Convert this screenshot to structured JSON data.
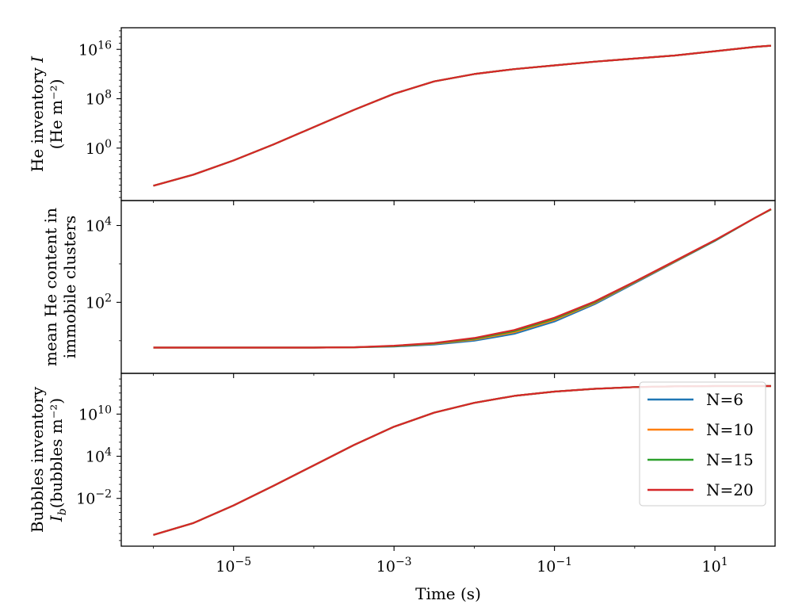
{
  "chart_data": [
    {
      "type": "line",
      "panel": "top",
      "ylabel_lines": [
        "He inventory I",
        "(He m⁻²)"
      ],
      "y_scale": "log",
      "x_scale": "log",
      "xlim_log10": [
        -6.4,
        1.75
      ],
      "ylim_log10": [
        -8.5,
        19.5
      ],
      "yticks": [
        {
          "exp": 16,
          "base": "10",
          "sup": "16"
        },
        {
          "exp": 8,
          "base": "10",
          "sup": "8"
        },
        {
          "exp": 0,
          "base": "10",
          "sup": "0"
        }
      ],
      "series": [
        {
          "name": "N=6",
          "color": "#1f77b4",
          "log10_x": [
            -6.0,
            -5.5,
            -5.0,
            -4.5,
            -4.0,
            -3.5,
            -3.0,
            -2.5,
            -2.0,
            -1.5,
            -1.0,
            -0.5,
            0.0,
            0.5,
            1.0,
            1.5,
            1.7
          ],
          "log10_y": [
            -6.1,
            -4.3,
            -2.0,
            0.6,
            3.4,
            6.2,
            8.8,
            10.8,
            12.0,
            12.8,
            13.4,
            14.0,
            14.5,
            15.0,
            15.7,
            16.4,
            16.6
          ]
        },
        {
          "name": "N=10",
          "color": "#ff7f0e",
          "log10_x": [
            -6.0,
            -5.5,
            -5.0,
            -4.5,
            -4.0,
            -3.5,
            -3.0,
            -2.5,
            -2.0,
            -1.5,
            -1.0,
            -0.5,
            0.0,
            0.5,
            1.0,
            1.5,
            1.7
          ],
          "log10_y": [
            -6.1,
            -4.3,
            -2.0,
            0.6,
            3.4,
            6.2,
            8.8,
            10.8,
            12.0,
            12.8,
            13.4,
            14.0,
            14.5,
            15.0,
            15.7,
            16.4,
            16.6
          ]
        },
        {
          "name": "N=15",
          "color": "#2ca02c",
          "log10_x": [
            -6.0,
            -5.5,
            -5.0,
            -4.5,
            -4.0,
            -3.5,
            -3.0,
            -2.5,
            -2.0,
            -1.5,
            -1.0,
            -0.5,
            0.0,
            0.5,
            1.0,
            1.5,
            1.7
          ],
          "log10_y": [
            -6.1,
            -4.3,
            -2.0,
            0.6,
            3.4,
            6.2,
            8.8,
            10.8,
            12.0,
            12.8,
            13.4,
            14.0,
            14.5,
            15.0,
            15.7,
            16.4,
            16.6
          ]
        },
        {
          "name": "N=20",
          "color": "#d62728",
          "log10_x": [
            -6.0,
            -5.5,
            -5.0,
            -4.5,
            -4.0,
            -3.5,
            -3.0,
            -2.5,
            -2.0,
            -1.5,
            -1.0,
            -0.5,
            0.0,
            0.5,
            1.0,
            1.5,
            1.7
          ],
          "log10_y": [
            -6.1,
            -4.3,
            -2.0,
            0.6,
            3.4,
            6.2,
            8.8,
            10.8,
            12.0,
            12.8,
            13.4,
            14.0,
            14.5,
            15.0,
            15.7,
            16.4,
            16.6
          ]
        }
      ]
    },
    {
      "type": "line",
      "panel": "middle",
      "ylabel_lines": [
        "mean He content in",
        "immobile clusters"
      ],
      "y_scale": "log",
      "x_scale": "log",
      "xlim_log10": [
        -6.4,
        1.75
      ],
      "ylim_log10": [
        0.15,
        4.65
      ],
      "yticks": [
        {
          "exp": 4,
          "base": "10",
          "sup": "4"
        },
        {
          "exp": 2,
          "base": "10",
          "sup": "2"
        }
      ],
      "series": [
        {
          "name": "N=6",
          "color": "#1f77b4",
          "log10_x": [
            -6.0,
            -5.0,
            -4.0,
            -3.5,
            -3.0,
            -2.5,
            -2.0,
            -1.5,
            -1.0,
            -0.5,
            0.0,
            0.5,
            1.0,
            1.5,
            1.7
          ],
          "log10_y": [
            0.82,
            0.82,
            0.82,
            0.83,
            0.85,
            0.9,
            1.0,
            1.18,
            1.5,
            1.95,
            2.5,
            3.05,
            3.6,
            4.2,
            4.42
          ]
        },
        {
          "name": "N=10",
          "color": "#ff7f0e",
          "log10_x": [
            -6.0,
            -5.0,
            -4.0,
            -3.5,
            -3.0,
            -2.5,
            -2.0,
            -1.5,
            -1.0,
            -0.5,
            0.0,
            0.5,
            1.0,
            1.5,
            1.7
          ],
          "log10_y": [
            0.82,
            0.82,
            0.82,
            0.83,
            0.86,
            0.92,
            1.03,
            1.22,
            1.54,
            1.98,
            2.52,
            3.06,
            3.61,
            4.2,
            4.42
          ]
        },
        {
          "name": "N=15",
          "color": "#2ca02c",
          "log10_x": [
            -6.0,
            -5.0,
            -4.0,
            -3.5,
            -3.0,
            -2.5,
            -2.0,
            -1.5,
            -1.0,
            -0.5,
            0.0,
            0.5,
            1.0,
            1.5,
            1.7
          ],
          "log10_y": [
            0.82,
            0.82,
            0.82,
            0.83,
            0.86,
            0.93,
            1.05,
            1.25,
            1.57,
            2.0,
            2.53,
            3.07,
            3.61,
            4.2,
            4.42
          ]
        },
        {
          "name": "N=20",
          "color": "#d62728",
          "log10_x": [
            -6.0,
            -5.0,
            -4.0,
            -3.5,
            -3.0,
            -2.5,
            -2.0,
            -1.5,
            -1.0,
            -0.5,
            0.0,
            0.5,
            1.0,
            1.5,
            1.7
          ],
          "log10_y": [
            0.82,
            0.82,
            0.82,
            0.83,
            0.87,
            0.94,
            1.07,
            1.28,
            1.6,
            2.02,
            2.54,
            3.08,
            3.62,
            4.2,
            4.43
          ]
        }
      ]
    },
    {
      "type": "line",
      "panel": "bottom",
      "ylabel_lines": [
        "Bubbles inventory",
        "I_b(bubbles m⁻²)"
      ],
      "y_scale": "log",
      "x_scale": "log",
      "xlim_log10": [
        -6.4,
        1.75
      ],
      "ylim_log10": [
        -8.8,
        15.8
      ],
      "yticks": [
        {
          "exp": 10,
          "base": "10",
          "sup": "10"
        },
        {
          "exp": 4,
          "base": "10",
          "sup": "4"
        },
        {
          "exp": -2,
          "base": "10",
          "sup": "−2"
        }
      ],
      "xticks": [
        {
          "exp": -5,
          "base": "10",
          "sup": "−5"
        },
        {
          "exp": -3,
          "base": "10",
          "sup": "−3"
        },
        {
          "exp": -1,
          "base": "10",
          "sup": "−1"
        },
        {
          "exp": 1,
          "base": "10",
          "sup": "1"
        }
      ],
      "xlabel": "Time (s)",
      "legend_placement": "upper-right",
      "series": [
        {
          "name": "N=6",
          "color": "#1f77b4",
          "log10_x": [
            -6.0,
            -5.5,
            -5.0,
            -4.5,
            -4.0,
            -3.5,
            -3.0,
            -2.5,
            -2.0,
            -1.5,
            -1.0,
            -0.5,
            0.0,
            0.5,
            1.0,
            1.5,
            1.7
          ],
          "log10_y": [
            -7.2,
            -5.5,
            -3.0,
            -0.2,
            2.7,
            5.6,
            8.2,
            10.2,
            11.6,
            12.6,
            13.2,
            13.6,
            13.85,
            13.95,
            14.0,
            14.0,
            14.0
          ]
        },
        {
          "name": "N=10",
          "color": "#ff7f0e",
          "log10_x": [
            -6.0,
            -5.5,
            -5.0,
            -4.5,
            -4.0,
            -3.5,
            -3.0,
            -2.5,
            -2.0,
            -1.5,
            -1.0,
            -0.5,
            0.0,
            0.5,
            1.0,
            1.5,
            1.7
          ],
          "log10_y": [
            -7.2,
            -5.5,
            -3.0,
            -0.2,
            2.7,
            5.6,
            8.2,
            10.2,
            11.6,
            12.6,
            13.2,
            13.6,
            13.85,
            13.95,
            14.0,
            14.0,
            14.0
          ]
        },
        {
          "name": "N=15",
          "color": "#2ca02c",
          "log10_x": [
            -6.0,
            -5.5,
            -5.0,
            -4.5,
            -4.0,
            -3.5,
            -3.0,
            -2.5,
            -2.0,
            -1.5,
            -1.0,
            -0.5,
            0.0,
            0.5,
            1.0,
            1.5,
            1.7
          ],
          "log10_y": [
            -7.2,
            -5.5,
            -3.0,
            -0.2,
            2.7,
            5.6,
            8.2,
            10.2,
            11.6,
            12.6,
            13.2,
            13.6,
            13.85,
            13.95,
            14.0,
            14.0,
            14.0
          ]
        },
        {
          "name": "N=20",
          "color": "#d62728",
          "log10_x": [
            -6.0,
            -5.5,
            -5.0,
            -4.5,
            -4.0,
            -3.5,
            -3.0,
            -2.5,
            -2.0,
            -1.5,
            -1.0,
            -0.5,
            0.0,
            0.5,
            1.0,
            1.5,
            1.7
          ],
          "log10_y": [
            -7.2,
            -5.5,
            -3.0,
            -0.2,
            2.7,
            5.6,
            8.2,
            10.2,
            11.6,
            12.6,
            13.2,
            13.6,
            13.85,
            13.95,
            14.0,
            14.0,
            14.0
          ]
        }
      ]
    }
  ]
}
